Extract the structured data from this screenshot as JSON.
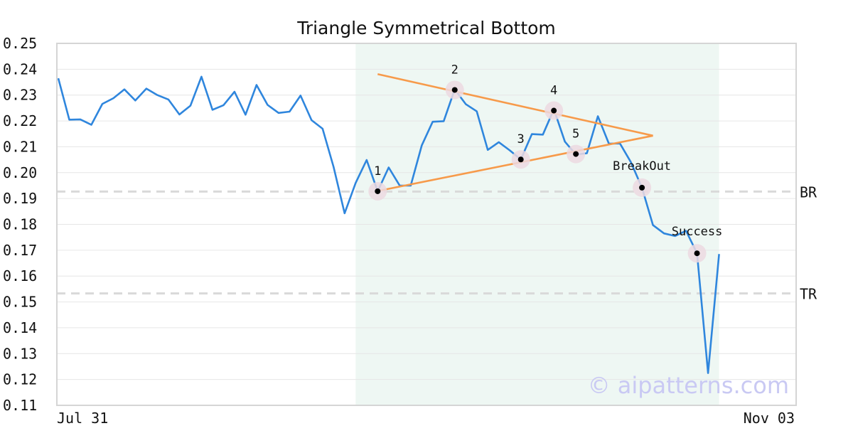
{
  "chart_data": {
    "type": "line",
    "title": "Triangle Symmetrical Bottom",
    "ylim": [
      0.11,
      0.25
    ],
    "y_ticks": [
      "0.25",
      "0.24",
      "0.23",
      "0.22",
      "0.21",
      "0.20",
      "0.19",
      "0.18",
      "0.17",
      "0.16",
      "0.15",
      "0.14",
      "0.13",
      "0.12",
      "0.11"
    ],
    "x_tick_labels": [
      {
        "index": 0,
        "label": "Jul 31"
      },
      {
        "index": 67,
        "label": "Nov 03"
      }
    ],
    "grid": true,
    "series": [
      {
        "color": "#2f86dd",
        "values": [
          0.2365,
          0.2205,
          0.2206,
          0.2185,
          0.2266,
          0.2288,
          0.2322,
          0.2279,
          0.2325,
          0.23,
          0.2283,
          0.2225,
          0.2259,
          0.2371,
          0.2243,
          0.2261,
          0.2313,
          0.2224,
          0.2339,
          0.2262,
          0.2231,
          0.2236,
          0.2298,
          0.2203,
          0.217,
          0.2022,
          0.1843,
          0.196,
          0.2049,
          0.1928,
          0.202,
          0.195,
          0.195,
          0.2105,
          0.2197,
          0.2199,
          0.2322,
          0.2265,
          0.2237,
          0.2088,
          0.2118,
          0.2086,
          0.2051,
          0.2149,
          0.2147,
          0.2245,
          0.212,
          0.207,
          0.2075,
          0.2218,
          0.2112,
          0.2113,
          0.204,
          0.1942,
          0.1797,
          0.1765,
          0.1755,
          0.1775,
          0.1688,
          0.1225,
          0.1685
        ]
      }
    ],
    "shaded_range": {
      "from_index": 27,
      "to_index": 60,
      "color": "#eef7f3"
    },
    "reference_lines": [
      {
        "label": "BR",
        "value": 0.1927
      },
      {
        "label": "TR",
        "value": 0.1533
      }
    ],
    "trend_lines": [
      {
        "color": "#f79a4a",
        "from": {
          "index": 29,
          "value": 0.2381
        },
        "to": {
          "index": 54,
          "value": 0.2143
        }
      },
      {
        "color": "#f79a4a",
        "from": {
          "index": 29,
          "value": 0.1929
        },
        "to": {
          "index": 54,
          "value": 0.2143
        }
      }
    ],
    "points": [
      {
        "label": "1",
        "index": 29,
        "value": 0.1928
      },
      {
        "label": "2",
        "index": 36,
        "value": 0.232
      },
      {
        "label": "3",
        "index": 42,
        "value": 0.2051
      },
      {
        "label": "4",
        "index": 45,
        "value": 0.224
      },
      {
        "label": "5",
        "index": 47,
        "value": 0.2072
      },
      {
        "label": "BreakOut",
        "index": 53,
        "value": 0.1942
      },
      {
        "label": "Success",
        "index": 58,
        "value": 0.1688
      }
    ],
    "colors": {
      "line": "#2f86dd",
      "trend": "#f79a4a",
      "point_halo": "#ecd9e1",
      "point_dot": "#000000",
      "ref_line": "#d9d9d9",
      "grid": "#e6e6e6",
      "frame": "#d5d5d5"
    },
    "watermark": "© aipatterns.com"
  }
}
